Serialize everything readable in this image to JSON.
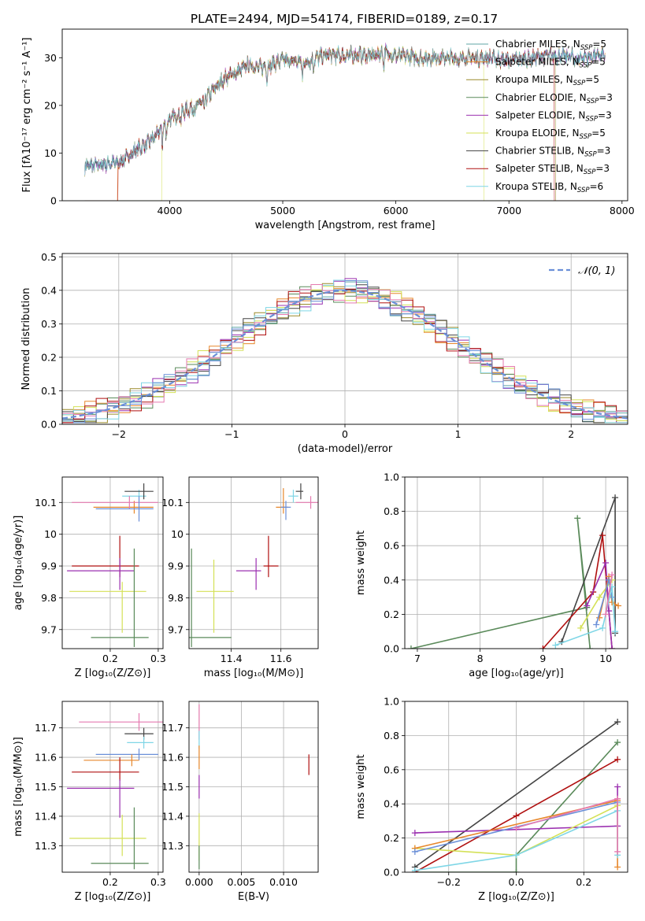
{
  "figure_title": "PLATE=2494, MJD=54174, FIBERID=0189, z=0.17",
  "chart_data": [
    {
      "id": "spectrum",
      "type": "line",
      "title": "PLATE=2494, MJD=54174, FIBERID=0189, z=0.17",
      "xlabel": "wavelength [Angstrom, rest frame]",
      "ylabel": "Flux [fλ10⁻¹⁷ erg cm⁻² s⁻¹ A⁻¹]",
      "xlim": [
        3050,
        8050
      ],
      "ylim": [
        0,
        36
      ],
      "xticks": [
        4000,
        5000,
        6000,
        7000,
        8000
      ],
      "yticks": [
        0,
        10,
        20,
        30
      ],
      "grid": false,
      "legend_position": "right",
      "legend": [
        {
          "label": "Chabrier MILES, N",
          "sub": "SSP",
          "tail": "=5",
          "color": "#5fa6a6"
        },
        {
          "label": "Salpeter MILES, N",
          "sub": "SSP",
          "tail": "=5",
          "color": "#e7872b"
        },
        {
          "label": "Kroupa MILES, N",
          "sub": "SSP",
          "tail": "=5",
          "color": "#9a8a2a"
        },
        {
          "label": "Chabrier ELODIE, N",
          "sub": "SSP",
          "tail": "=3",
          "color": "#5a8a5a"
        },
        {
          "label": "Salpeter ELODIE, N",
          "sub": "SSP",
          "tail": "=3",
          "color": "#9b30b0"
        },
        {
          "label": "Kroupa ELODIE, N",
          "sub": "SSP",
          "tail": "=5",
          "color": "#d4e157"
        },
        {
          "label": "Chabrier STELIB, N",
          "sub": "SSP",
          "tail": "=3",
          "color": "#444444"
        },
        {
          "label": "Salpeter STELIB, N",
          "sub": "SSP",
          "tail": "=3",
          "color": "#b01010"
        },
        {
          "label": "Kroupa STELIB, N",
          "sub": "SSP",
          "tail": "=6",
          "color": "#7fd6e6"
        }
      ],
      "continuum": {
        "x": [
          3250,
          3400,
          3550,
          3700,
          3800,
          3900,
          4000,
          4100,
          4200,
          4300,
          4400,
          4500,
          4600,
          4700,
          4800,
          4900,
          5000,
          5200,
          5300,
          5400,
          5600,
          5800,
          5900,
          6000,
          6200,
          6400,
          6600,
          6800,
          7000,
          7200,
          7400,
          7600,
          7850
        ],
        "y": [
          7.2,
          7.6,
          8.0,
          10.5,
          12.0,
          14.2,
          17.0,
          18.5,
          19.5,
          21.0,
          23.5,
          26.0,
          27.0,
          28.5,
          28.0,
          28.5,
          29.5,
          29.0,
          30.0,
          30.5,
          30.5,
          30.5,
          31.0,
          30.5,
          30.0,
          30.0,
          30.0,
          30.0,
          29.5,
          30.0,
          30.5,
          30.0,
          30.5
        ]
      }
    },
    {
      "id": "residuals",
      "type": "histogram",
      "xlabel": "(data-model)/error",
      "ylabel": "Normed distribution",
      "xlim": [
        -2.5,
        2.5
      ],
      "ylim": [
        0,
        0.51
      ],
      "xticks": [
        -2,
        -1,
        0,
        1,
        2
      ],
      "yticks": [
        0.0,
        0.1,
        0.2,
        0.3,
        0.4,
        0.5
      ],
      "grid": true,
      "bin_width": 0.1,
      "legend_position": "top-right",
      "reference": {
        "label": "𝒩(0, 1)",
        "color": "#6a8fd8",
        "mean": 0,
        "sigma": 1
      }
    },
    {
      "id": "age-vs-Z",
      "type": "errorbar",
      "xlabel": "Z [log₁₀(Z/Z⊙)]",
      "ylabel": "age  [log₁₀(age/yr)]",
      "xlim": [
        0.1,
        0.31
      ],
      "ylim": [
        9.64,
        10.18
      ],
      "xticks": [
        0.2,
        0.3
      ],
      "yticks": [
        9.7,
        9.8,
        9.9,
        10.0,
        10.1
      ],
      "grid": true,
      "points": [
        {
          "x": 0.26,
          "y": 10.12,
          "xerr": [
            0.035,
            0.015
          ],
          "yerr": [
            0.02,
            0.02
          ],
          "color": "#7fd6e6"
        },
        {
          "x": 0.25,
          "y": 10.085,
          "xerr": [
            0.085,
            0.04
          ],
          "yerr": [
            0.02,
            0.02
          ],
          "color": "#e7872b"
        },
        {
          "x": 0.24,
          "y": 10.1,
          "xerr": [
            0.12,
            0.06
          ],
          "yerr": [
            0.02,
            0.02
          ],
          "color": "#e57ab0"
        },
        {
          "x": 0.26,
          "y": 10.08,
          "xerr": [
            0.09,
            0.03
          ],
          "yerr": [
            0.04,
            0.04
          ],
          "color": "#6a8fd8"
        },
        {
          "x": 0.27,
          "y": 10.135,
          "xerr": [
            0.04,
            0.02
          ],
          "yerr": [
            0.025,
            0.025
          ],
          "color": "#444444"
        },
        {
          "x": 0.22,
          "y": 9.9,
          "xerr": [
            0.1,
            0.04
          ],
          "yerr": [
            0.035,
            0.095
          ],
          "color": "#b01010"
        },
        {
          "x": 0.22,
          "y": 9.885,
          "xerr": [
            0.11,
            0.03
          ],
          "yerr": [
            0.06,
            0.04
          ],
          "color": "#9b30b0"
        },
        {
          "x": 0.225,
          "y": 9.82,
          "xerr": [
            0.11,
            0.05
          ],
          "yerr": [
            0.13,
            0.03
          ],
          "color": "#d4e157"
        },
        {
          "x": 0.25,
          "y": 9.675,
          "xerr": [
            0.09,
            0.03
          ],
          "yerr": [
            0.03,
            0.28
          ],
          "color": "#5a8a5a"
        }
      ]
    },
    {
      "id": "age-vs-mass",
      "type": "errorbar",
      "xlabel": "mass [log₁₀(M/M⊙)]",
      "ylabel": "",
      "xlim": [
        11.23,
        11.75
      ],
      "ylim": [
        9.64,
        10.18
      ],
      "xticks": [
        11.4,
        11.6
      ],
      "yticks": [
        9.7,
        9.8,
        9.9,
        10.0,
        10.1
      ],
      "grid": true,
      "points": [
        {
          "x": 11.65,
          "y": 10.12,
          "xerr": [
            0.02,
            0.02
          ],
          "yerr": [
            0.02,
            0.02
          ],
          "color": "#7fd6e6"
        },
        {
          "x": 11.61,
          "y": 10.085,
          "xerr": [
            0.03,
            0.02
          ],
          "yerr": [
            0.02,
            0.06
          ],
          "color": "#e7872b"
        },
        {
          "x": 11.72,
          "y": 10.1,
          "xerr": [
            0.06,
            0.05
          ],
          "yerr": [
            0.02,
            0.02
          ],
          "color": "#e57ab0"
        },
        {
          "x": 11.62,
          "y": 10.085,
          "xerr": [
            0.02,
            0.02
          ],
          "yerr": [
            0.04,
            0.02
          ],
          "color": "#6a8fd8"
        },
        {
          "x": 11.68,
          "y": 10.135,
          "xerr": [
            0.02,
            0.01
          ],
          "yerr": [
            0.025,
            0.025
          ],
          "color": "#444444"
        },
        {
          "x": 11.55,
          "y": 9.9,
          "xerr": [
            0.02,
            0.04
          ],
          "yerr": [
            0.035,
            0.095
          ],
          "color": "#b01010"
        },
        {
          "x": 11.5,
          "y": 9.885,
          "xerr": [
            0.08,
            0.02
          ],
          "yerr": [
            0.06,
            0.04
          ],
          "color": "#9b30b0"
        },
        {
          "x": 11.33,
          "y": 9.82,
          "xerr": [
            0.07,
            0.08
          ],
          "yerr": [
            0.13,
            0.1
          ],
          "color": "#d4e157"
        },
        {
          "x": 11.24,
          "y": 9.675,
          "xerr": [
            0.01,
            0.16
          ],
          "yerr": [
            0.03,
            0.28
          ],
          "color": "#5a8a5a"
        }
      ]
    },
    {
      "id": "weight-vs-age",
      "type": "line",
      "xlabel": "age  [log₁₀(age/yr)]",
      "ylabel": "mass weight",
      "xlim": [
        6.8,
        10.35
      ],
      "ylim": [
        0,
        1
      ],
      "xticks": [
        7,
        8,
        9,
        10
      ],
      "yticks": [
        0.0,
        0.2,
        0.4,
        0.6,
        0.8,
        1.0
      ],
      "grid": true,
      "series": [
        {
          "color": "#5a8a5a",
          "x": [
            6.9,
            9.7,
            9.55,
            9.75
          ],
          "y": [
            0.0,
            0.24,
            0.76,
            0.0
          ]
        },
        {
          "color": "#444444",
          "x": [
            9.3,
            10.15,
            10.15
          ],
          "y": [
            0.04,
            0.88,
            0.09
          ]
        },
        {
          "color": "#b01010",
          "x": [
            9.0,
            9.8,
            9.95,
            10.1
          ],
          "y": [
            0.0,
            0.33,
            0.66,
            0.0
          ]
        },
        {
          "color": "#9b30b0",
          "x": [
            9.7,
            10.0,
            10.05,
            10.1
          ],
          "y": [
            0.25,
            0.5,
            0.22,
            0.0
          ]
        },
        {
          "color": "#d4e157",
          "x": [
            9.6,
            9.9,
            10.1
          ],
          "y": [
            0.12,
            0.3,
            0.4
          ]
        },
        {
          "color": "#e7872b",
          "x": [
            9.9,
            10.05,
            10.1,
            10.2
          ],
          "y": [
            0.18,
            0.42,
            0.27,
            0.25
          ]
        },
        {
          "color": "#6a8fd8",
          "x": [
            9.85,
            10.05,
            10.1
          ],
          "y": [
            0.14,
            0.4,
            0.3
          ]
        },
        {
          "color": "#7fd6e6",
          "x": [
            9.2,
            9.95,
            10.1,
            10.15
          ],
          "y": [
            0.02,
            0.12,
            0.36,
            0.1
          ]
        },
        {
          "color": "#e57ab0",
          "x": [
            10.0,
            10.1
          ],
          "y": [
            0.2,
            0.43
          ]
        }
      ]
    },
    {
      "id": "mass-vs-Z",
      "type": "errorbar",
      "xlabel": "Z [log₁₀(Z/Z⊙)]",
      "ylabel": "mass [log₁₀(M/M⊙)]",
      "xlim": [
        0.1,
        0.31
      ],
      "ylim": [
        11.21,
        11.79
      ],
      "xticks": [
        0.2,
        0.3
      ],
      "yticks": [
        11.3,
        11.4,
        11.5,
        11.6,
        11.7
      ],
      "grid": true,
      "points": [
        {
          "x": 0.26,
          "y": 11.72,
          "xerr": [
            0.125,
            0.05
          ],
          "yerr": [
            0.03,
            0.03
          ],
          "color": "#e57ab0"
        },
        {
          "x": 0.27,
          "y": 11.68,
          "xerr": [
            0.04,
            0.02
          ],
          "yerr": [
            0.02,
            0.02
          ],
          "color": "#444444"
        },
        {
          "x": 0.27,
          "y": 11.65,
          "xerr": [
            0.035,
            0.02
          ],
          "yerr": [
            0.02,
            0.02
          ],
          "color": "#7fd6e6"
        },
        {
          "x": 0.26,
          "y": 11.61,
          "xerr": [
            0.09,
            0.04
          ],
          "yerr": [
            0.02,
            0.02
          ],
          "color": "#6a8fd8"
        },
        {
          "x": 0.245,
          "y": 11.59,
          "xerr": [
            0.1,
            0.015
          ],
          "yerr": [
            0.02,
            0.02
          ],
          "color": "#e7872b"
        },
        {
          "x": 0.22,
          "y": 11.55,
          "xerr": [
            0.1,
            0.04
          ],
          "yerr": [
            0.03,
            0.05
          ],
          "color": "#b01010"
        },
        {
          "x": 0.22,
          "y": 11.495,
          "xerr": [
            0.11,
            0.03
          ],
          "yerr": [
            0.1,
            0.03
          ],
          "color": "#9b30b0"
        },
        {
          "x": 0.225,
          "y": 11.325,
          "xerr": [
            0.11,
            0.05
          ],
          "yerr": [
            0.06,
            0.08
          ],
          "color": "#d4e157"
        },
        {
          "x": 0.25,
          "y": 11.24,
          "xerr": [
            0.09,
            0.03
          ],
          "yerr": [
            0.02,
            0.19
          ],
          "color": "#5a8a5a"
        }
      ]
    },
    {
      "id": "mass-vs-ebv",
      "type": "errorbar",
      "xlabel": "E(B-V)",
      "ylabel": "",
      "xlim": [
        -0.0012,
        0.0141
      ],
      "ylim": [
        11.21,
        11.79
      ],
      "xticks": [
        0.0,
        0.005,
        0.01
      ],
      "xtick_labels": [
        "0.000",
        "0.005",
        "0.010"
      ],
      "yticks": [
        11.3,
        11.4,
        11.5,
        11.6,
        11.7
      ],
      "grid": true,
      "points": [
        {
          "x": 0.0,
          "y": 11.72,
          "xerr": [
            0,
            0
          ],
          "yerr": [
            0.06,
            0.06
          ],
          "color": "#e57ab0"
        },
        {
          "x": 0.0,
          "y": 11.66,
          "xerr": [
            0,
            0
          ],
          "yerr": [
            0.03,
            0.03
          ],
          "color": "#7fd6e6"
        },
        {
          "x": 0.0,
          "y": 11.6,
          "xerr": [
            0,
            0
          ],
          "yerr": [
            0.04,
            0.04
          ],
          "color": "#e7872b"
        },
        {
          "x": 0.0,
          "y": 11.5,
          "xerr": [
            0,
            0
          ],
          "yerr": [
            0.04,
            0.04
          ],
          "color": "#9b30b0"
        },
        {
          "x": 0.0,
          "y": 11.33,
          "xerr": [
            0,
            0
          ],
          "yerr": [
            0.08,
            0.08
          ],
          "color": "#d4e157"
        },
        {
          "x": 0.0,
          "y": 11.26,
          "xerr": [
            0,
            0
          ],
          "yerr": [
            0.04,
            0.04
          ],
          "color": "#5a8a5a"
        },
        {
          "x": 0.013,
          "y": 11.575,
          "xerr": [
            0,
            0
          ],
          "yerr": [
            0.035,
            0.035
          ],
          "color": "#b01010"
        }
      ]
    },
    {
      "id": "weight-vs-Z",
      "type": "line",
      "xlabel": "Z [log₁₀(Z/Z⊙)]",
      "ylabel": "mass weight",
      "xlim": [
        -0.33,
        0.33
      ],
      "ylim": [
        0,
        1
      ],
      "xticks": [
        -0.2,
        0.0,
        0.2
      ],
      "xtick_labels": [
        "−0.2",
        "0.0",
        "0.2"
      ],
      "yticks": [
        0.0,
        0.2,
        0.4,
        0.6,
        0.8,
        1.0
      ],
      "grid": true,
      "series": [
        {
          "color": "#444444",
          "x": [
            -0.3,
            0.3
          ],
          "y": [
            0.03,
            0.88
          ]
        },
        {
          "color": "#5a8a5a",
          "x": [
            -0.3,
            0.0,
            0.0,
            0.3
          ],
          "y": [
            0.0,
            0.0,
            0.1,
            0.76
          ]
        },
        {
          "color": "#b01010",
          "x": [
            -0.3,
            0.0,
            0.3
          ],
          "y": [
            0.0,
            0.33,
            0.66
          ]
        },
        {
          "color": "#9b30b0",
          "x": [
            -0.3,
            0.3,
            0.3
          ],
          "y": [
            0.23,
            0.27,
            0.5
          ]
        },
        {
          "color": "#d4e157",
          "x": [
            -0.3,
            0.0,
            0.3
          ],
          "y": [
            0.14,
            0.1,
            0.39
          ]
        },
        {
          "color": "#e7872b",
          "x": [
            -0.3,
            0.3,
            0.3
          ],
          "y": [
            0.14,
            0.42,
            0.03
          ]
        },
        {
          "color": "#6a8fd8",
          "x": [
            -0.3,
            0.3
          ],
          "y": [
            0.12,
            0.41
          ]
        },
        {
          "color": "#7fd6e6",
          "x": [
            -0.3,
            0.0,
            0.3,
            0.3
          ],
          "y": [
            0.01,
            0.1,
            0.36,
            0.1
          ]
        },
        {
          "color": "#e57ab0",
          "x": [
            0.0,
            0.3,
            0.3
          ],
          "y": [
            0.26,
            0.43,
            0.12
          ]
        }
      ]
    }
  ]
}
